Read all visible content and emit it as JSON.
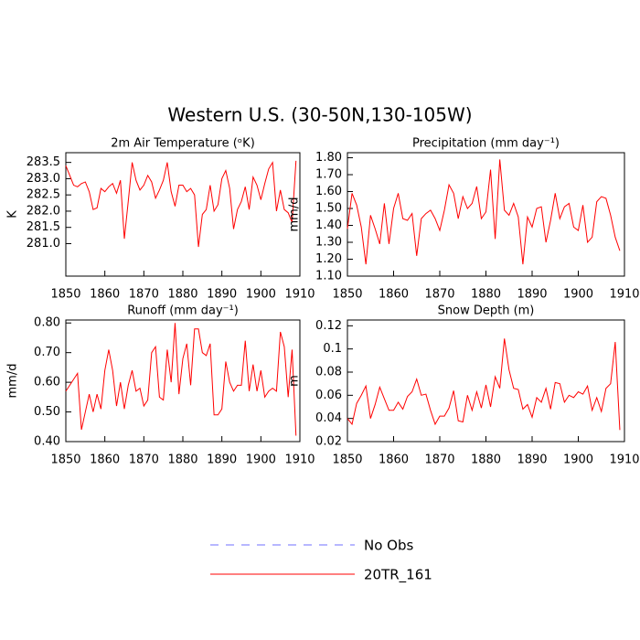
{
  "title": "Western U.S. (30-50N,130-105W)",
  "legend": [
    {
      "name": "No Obs",
      "color": "#6f6fff",
      "style": "dashed"
    }
  ],
  "chart_data": [
    {
      "type": "line",
      "title": "2m Air Temperature (ᵒK)",
      "ylabel": "K",
      "x": [
        1850,
        1851,
        1852,
        1853,
        1854,
        1855,
        1856,
        1857,
        1858,
        1859,
        1860,
        1861,
        1862,
        1863,
        1864,
        1865,
        1866,
        1867,
        1868,
        1869,
        1870,
        1871,
        1872,
        1873,
        1874,
        1875,
        1876,
        1877,
        1878,
        1879,
        1880,
        1881,
        1882,
        1883,
        1884,
        1885,
        1886,
        1887,
        1888,
        1889,
        1890,
        1891,
        1892,
        1893,
        1894,
        1895,
        1896,
        1897,
        1898,
        1899,
        1900,
        1901,
        1902,
        1903,
        1904,
        1905,
        1906,
        1907,
        1908,
        1909
      ],
      "xlim": [
        1850,
        1910
      ],
      "xticks": [
        1850,
        1860,
        1870,
        1880,
        1890,
        1900,
        1910
      ],
      "ylim": [
        280.0,
        283.8
      ],
      "yticks": [
        {
          "value": 281,
          "label": "281.0"
        },
        281.5,
        {
          "value": 282,
          "label": "282.0"
        },
        282.5,
        {
          "value": 283,
          "label": "283.0"
        },
        283.5
      ],
      "series": [
        {
          "name": "20TR_161",
          "color": "#ff0000",
          "values": [
            283.4,
            283.1,
            282.8,
            282.75,
            282.85,
            282.9,
            282.6,
            282.05,
            282.1,
            282.7,
            282.6,
            282.75,
            282.85,
            282.55,
            282.95,
            281.15,
            282.3,
            283.5,
            282.95,
            282.65,
            282.8,
            283.1,
            282.9,
            282.4,
            282.65,
            282.95,
            283.5,
            282.6,
            282.15,
            282.8,
            282.8,
            282.6,
            282.7,
            282.5,
            280.9,
            281.9,
            282.05,
            282.8,
            282.0,
            282.2,
            283.0,
            283.25,
            282.7,
            281.45,
            282.05,
            282.3,
            282.75,
            282.05,
            283.05,
            282.8,
            282.35,
            282.85,
            283.3,
            283.5,
            282.0,
            282.65,
            282.05,
            281.95,
            281.65,
            283.55
          ]
        }
      ]
    },
    {
      "type": "line",
      "title": "Precipitation (mm day⁻¹)",
      "ylabel": "mm/d",
      "x": [
        1850,
        1851,
        1852,
        1853,
        1854,
        1855,
        1856,
        1857,
        1858,
        1859,
        1860,
        1861,
        1862,
        1863,
        1864,
        1865,
        1866,
        1867,
        1868,
        1869,
        1870,
        1871,
        1872,
        1873,
        1874,
        1875,
        1876,
        1877,
        1878,
        1879,
        1880,
        1881,
        1882,
        1883,
        1884,
        1885,
        1886,
        1887,
        1888,
        1889,
        1890,
        1891,
        1892,
        1893,
        1894,
        1895,
        1896,
        1897,
        1898,
        1899,
        1900,
        1901,
        1902,
        1903,
        1904,
        1905,
        1906,
        1907,
        1908,
        1909
      ],
      "xlim": [
        1850,
        1910
      ],
      "xticks": [
        1850,
        1860,
        1870,
        1880,
        1890,
        1900,
        1910
      ],
      "ylim": [
        1.1,
        1.83
      ],
      "yticks": [
        {
          "value": 1.1,
          "label": "1.10"
        },
        {
          "value": 1.2,
          "label": "1.20"
        },
        {
          "value": 1.3,
          "label": "1.30"
        },
        {
          "value": 1.4,
          "label": "1.40"
        },
        {
          "value": 1.5,
          "label": "1.50"
        },
        {
          "value": 1.6,
          "label": "1.60"
        },
        {
          "value": 1.7,
          "label": "1.70"
        },
        {
          "value": 1.8,
          "label": "1.80"
        }
      ],
      "series": [
        {
          "name": "20TR_161",
          "color": "#ff0000",
          "values": [
            1.38,
            1.59,
            1.52,
            1.39,
            1.17,
            1.46,
            1.38,
            1.29,
            1.53,
            1.29,
            1.5,
            1.59,
            1.44,
            1.43,
            1.47,
            1.22,
            1.44,
            1.47,
            1.49,
            1.44,
            1.37,
            1.49,
            1.64,
            1.59,
            1.44,
            1.57,
            1.5,
            1.53,
            1.63,
            1.44,
            1.48,
            1.73,
            1.32,
            1.79,
            1.49,
            1.46,
            1.53,
            1.45,
            1.17,
            1.45,
            1.39,
            1.5,
            1.51,
            1.3,
            1.43,
            1.59,
            1.44,
            1.51,
            1.53,
            1.39,
            1.37,
            1.52,
            1.3,
            1.33,
            1.54,
            1.57,
            1.56,
            1.46,
            1.33,
            1.25
          ]
        }
      ]
    },
    {
      "type": "line",
      "title": "Runoff (mm day⁻¹)",
      "ylabel": "mm/d",
      "x": [
        1850,
        1851,
        1852,
        1853,
        1854,
        1855,
        1856,
        1857,
        1858,
        1859,
        1860,
        1861,
        1862,
        1863,
        1864,
        1865,
        1866,
        1867,
        1868,
        1869,
        1870,
        1871,
        1872,
        1873,
        1874,
        1875,
        1876,
        1877,
        1878,
        1879,
        1880,
        1881,
        1882,
        1883,
        1884,
        1885,
        1886,
        1887,
        1888,
        1889,
        1890,
        1891,
        1892,
        1893,
        1894,
        1895,
        1896,
        1897,
        1898,
        1899,
        1900,
        1901,
        1902,
        1903,
        1904,
        1905,
        1906,
        1907,
        1908,
        1909
      ],
      "xlim": [
        1850,
        1910
      ],
      "xticks": [
        1850,
        1860,
        1870,
        1880,
        1890,
        1900,
        1910
      ],
      "ylim": [
        0.4,
        0.81
      ],
      "yticks": [
        {
          "value": 0.4,
          "label": "0.40"
        },
        {
          "value": 0.5,
          "label": "0.50"
        },
        {
          "value": 0.6,
          "label": "0.60"
        },
        {
          "value": 0.7,
          "label": "0.70"
        },
        {
          "value": 0.8,
          "label": "0.80"
        }
      ],
      "series": [
        {
          "name": "20TR_161",
          "color": "#ff0000",
          "values": [
            0.57,
            0.59,
            0.61,
            0.63,
            0.44,
            0.5,
            0.56,
            0.5,
            0.56,
            0.51,
            0.64,
            0.71,
            0.64,
            0.52,
            0.6,
            0.51,
            0.59,
            0.64,
            0.57,
            0.58,
            0.52,
            0.54,
            0.7,
            0.72,
            0.55,
            0.54,
            0.71,
            0.6,
            0.8,
            0.56,
            0.68,
            0.73,
            0.59,
            0.78,
            0.78,
            0.7,
            0.69,
            0.73,
            0.49,
            0.49,
            0.51,
            0.67,
            0.6,
            0.57,
            0.59,
            0.59,
            0.74,
            0.57,
            0.66,
            0.57,
            0.64,
            0.55,
            0.57,
            0.58,
            0.57,
            0.77,
            0.72,
            0.55,
            0.71,
            0.42
          ]
        }
      ]
    },
    {
      "type": "line",
      "title": "Snow Depth (m)",
      "ylabel": "m",
      "x": [
        1850,
        1851,
        1852,
        1853,
        1854,
        1855,
        1856,
        1857,
        1858,
        1859,
        1860,
        1861,
        1862,
        1863,
        1864,
        1865,
        1866,
        1867,
        1868,
        1869,
        1870,
        1871,
        1872,
        1873,
        1874,
        1875,
        1876,
        1877,
        1878,
        1879,
        1880,
        1881,
        1882,
        1883,
        1884,
        1885,
        1886,
        1887,
        1888,
        1889,
        1890,
        1891,
        1892,
        1893,
        1894,
        1895,
        1896,
        1897,
        1898,
        1899,
        1900,
        1901,
        1902,
        1903,
        1904,
        1905,
        1906,
        1907,
        1908,
        1909
      ],
      "xlim": [
        1850,
        1910
      ],
      "xticks": [
        1850,
        1860,
        1870,
        1880,
        1890,
        1900,
        1910
      ],
      "ylim": [
        0.02,
        0.125
      ],
      "yticks": [
        0.02,
        0.04,
        0.06,
        0.08,
        0.1,
        0.12
      ],
      "series": [
        {
          "name": "20TR_161",
          "color": "#ff0000",
          "values": [
            0.04,
            0.035,
            0.053,
            0.06,
            0.068,
            0.04,
            0.052,
            0.067,
            0.057,
            0.047,
            0.047,
            0.054,
            0.048,
            0.059,
            0.063,
            0.074,
            0.06,
            0.061,
            0.047,
            0.035,
            0.042,
            0.042,
            0.049,
            0.064,
            0.038,
            0.037,
            0.06,
            0.047,
            0.063,
            0.049,
            0.069,
            0.05,
            0.076,
            0.066,
            0.109,
            0.082,
            0.066,
            0.065,
            0.048,
            0.052,
            0.041,
            0.058,
            0.054,
            0.066,
            0.048,
            0.071,
            0.07,
            0.054,
            0.06,
            0.058,
            0.063,
            0.061,
            0.068,
            0.047,
            0.058,
            0.046,
            0.066,
            0.07,
            0.106,
            0.03
          ]
        }
      ]
    }
  ]
}
